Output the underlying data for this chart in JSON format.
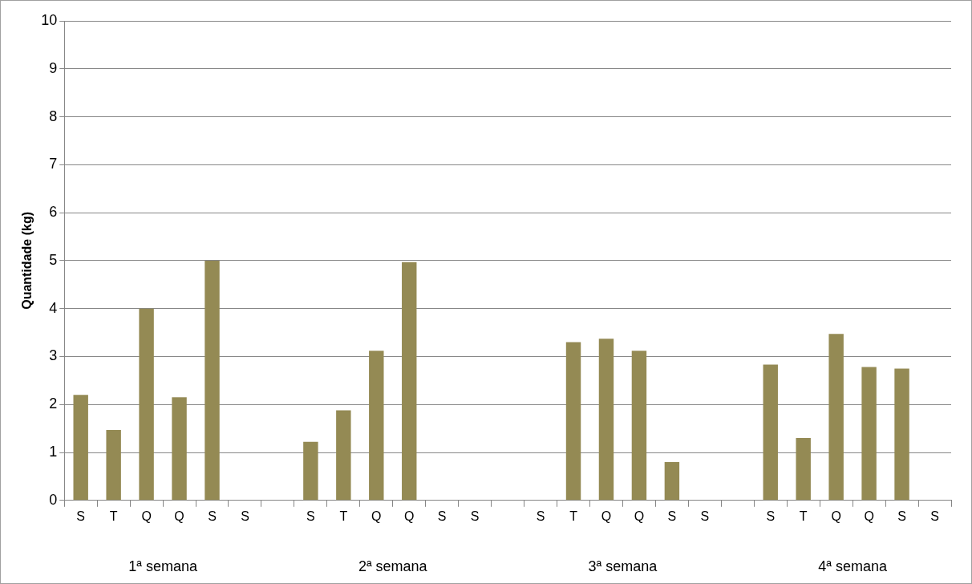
{
  "chart_data": {
    "type": "bar",
    "ylabel": "Quantidade (kg)",
    "categories": [
      "S",
      "T",
      "Q",
      "Q",
      "S",
      "S",
      null,
      "S",
      "T",
      "Q",
      "Q",
      "S",
      "S",
      null,
      "S",
      "T",
      "Q",
      "Q",
      "S",
      "S",
      null,
      "S",
      "T",
      "Q",
      "Q",
      "S",
      "S"
    ],
    "values": [
      2.2,
      1.47,
      4.0,
      2.15,
      5.0,
      null,
      null,
      1.22,
      1.88,
      3.12,
      4.97,
      null,
      null,
      null,
      null,
      3.3,
      3.37,
      3.12,
      0.8,
      null,
      null,
      2.83,
      1.3,
      3.47,
      2.78,
      2.75,
      null
    ],
    "color": "#948a54",
    "ylim": [
      0,
      10
    ],
    "yticks": [
      0,
      1,
      2,
      3,
      4,
      5,
      6,
      7,
      8,
      9,
      10
    ],
    "grid": "y",
    "annotations": [
      "1ª semana",
      "2ª semana",
      "3ª semana",
      "4ª semana"
    ]
  }
}
